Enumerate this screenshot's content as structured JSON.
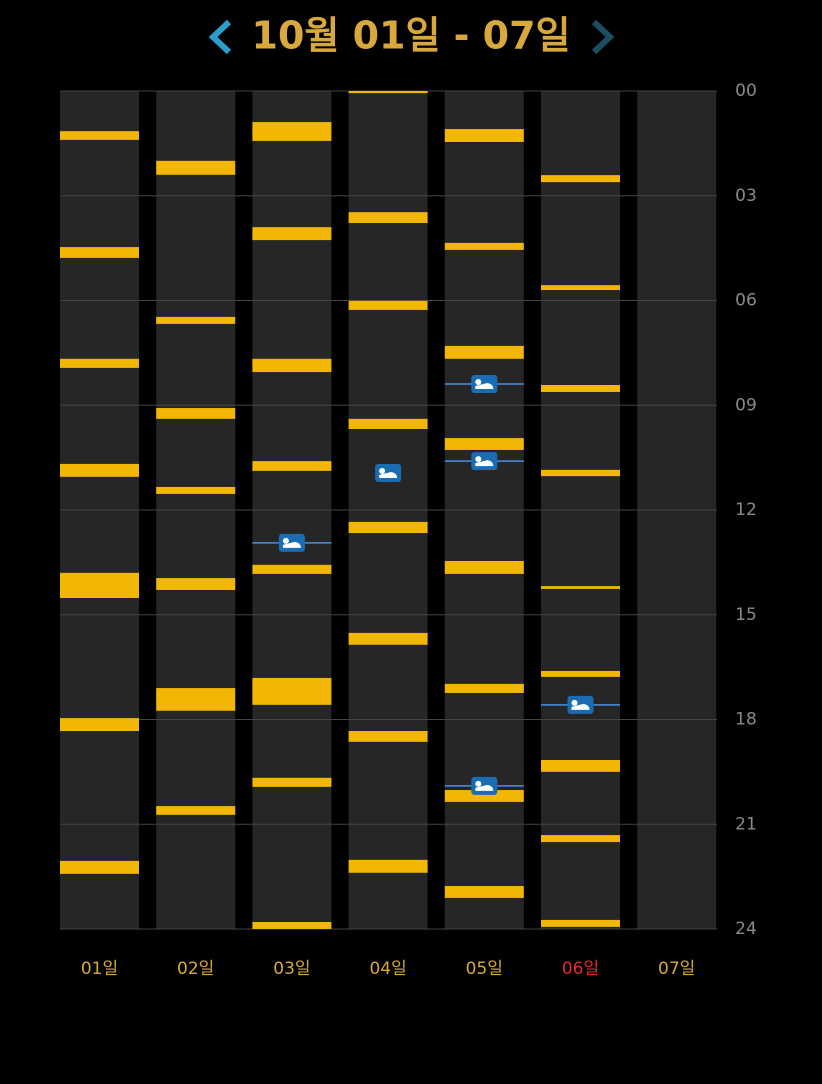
{
  "header": {
    "title": "10월 01일 - 07일"
  },
  "hours": [
    "00",
    "03",
    "06",
    "09",
    "12",
    "15",
    "18",
    "21",
    "24"
  ],
  "today_index": 5,
  "days": [
    {
      "label": "01일",
      "events": [
        [
          1.15,
          1.4
        ],
        [
          4.47,
          4.78
        ],
        [
          7.67,
          7.93
        ],
        [
          10.68,
          11.05
        ],
        [
          13.8,
          14.52
        ],
        [
          17.96,
          18.33
        ],
        [
          22.05,
          22.42
        ]
      ],
      "sleep": []
    },
    {
      "label": "02일",
      "events": [
        [
          2.0,
          2.4
        ],
        [
          6.47,
          6.67
        ],
        [
          9.08,
          9.39
        ],
        [
          11.34,
          11.54
        ],
        [
          13.95,
          14.29
        ],
        [
          17.1,
          17.75
        ],
        [
          20.48,
          20.73
        ]
      ],
      "sleep": []
    },
    {
      "label": "03일",
      "events": [
        [
          0.89,
          1.43
        ],
        [
          3.9,
          4.27
        ],
        [
          7.67,
          8.05
        ],
        [
          10.6,
          10.88
        ],
        [
          13.57,
          13.83
        ],
        [
          16.81,
          17.58
        ],
        [
          19.67,
          19.93
        ],
        [
          23.8,
          24
        ]
      ],
      "sleep": [
        {
          "hour": 12.94,
          "line": true
        }
      ]
    },
    {
      "label": "04일",
      "events": [
        [
          0,
          0.06
        ],
        [
          3.47,
          3.78
        ],
        [
          6.01,
          6.27
        ],
        [
          9.39,
          9.68
        ],
        [
          12.34,
          12.66
        ],
        [
          15.52,
          15.86
        ],
        [
          18.33,
          18.64
        ],
        [
          22.02,
          22.39
        ]
      ],
      "sleep": [
        {
          "hour": 10.94,
          "line": false
        }
      ]
    },
    {
      "label": "05일",
      "events": [
        [
          1.09,
          1.46
        ],
        [
          4.35,
          4.55
        ],
        [
          7.3,
          7.67
        ],
        [
          9.94,
          10.28
        ],
        [
          13.46,
          13.83
        ],
        [
          16.98,
          17.24
        ],
        [
          20.02,
          20.36
        ],
        [
          22.77,
          23.11
        ]
      ],
      "sleep": [
        {
          "hour": 8.39,
          "line": true
        },
        {
          "hour": 10.6,
          "line": true
        },
        {
          "hour": 19.9,
          "line": true
        }
      ]
    },
    {
      "label": "06일",
      "events": [
        [
          2.41,
          2.61
        ],
        [
          5.56,
          5.7
        ],
        [
          8.42,
          8.62
        ],
        [
          10.85,
          11.03
        ],
        [
          14.18,
          14.26
        ],
        [
          16.61,
          16.78
        ],
        [
          19.16,
          19.5
        ],
        [
          21.31,
          21.51
        ],
        [
          23.74,
          23.94
        ]
      ],
      "sleep": [
        {
          "hour": 17.58,
          "line": true
        }
      ]
    },
    {
      "label": "07일",
      "events": [],
      "sleep": []
    }
  ]
}
